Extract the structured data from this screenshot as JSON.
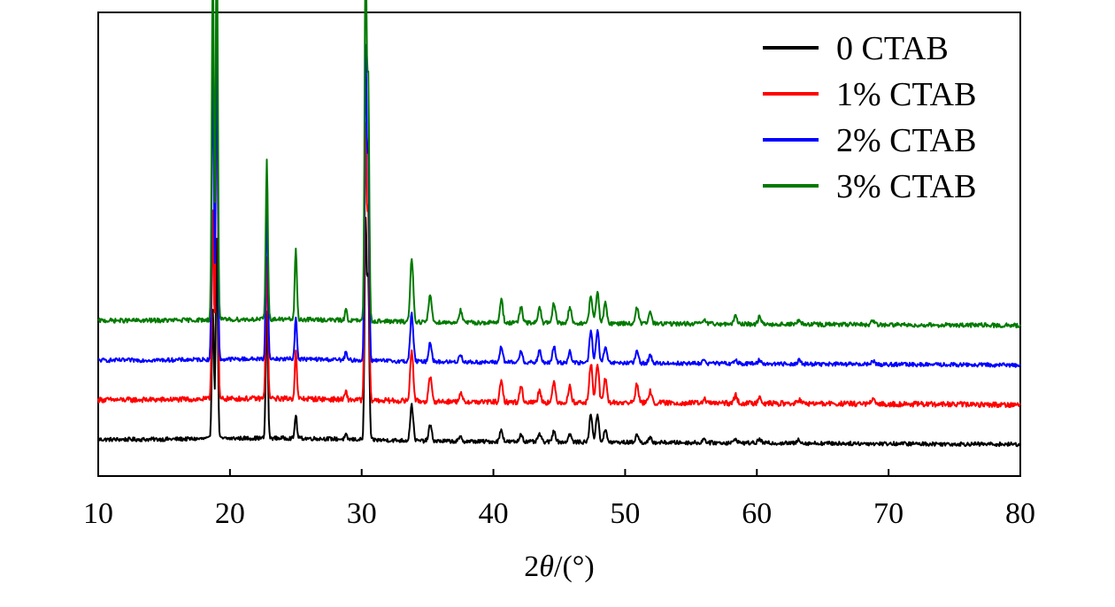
{
  "chart_data": {
    "type": "line",
    "title": "",
    "xlabel": {
      "prefix": "2",
      "symbol": "θ",
      "suffix": "/(°)"
    },
    "ylabel": "",
    "xlim": [
      10,
      80
    ],
    "xticks": [
      10,
      20,
      30,
      40,
      50,
      60,
      70,
      80
    ],
    "xtick_labels": [
      "10",
      "20",
      "30",
      "40",
      "50",
      "60",
      "70",
      "80"
    ],
    "y_ticks_shown": false,
    "grid": false,
    "legend_position": "top-right",
    "units": "arbitrary intensity, stacked traces",
    "peaks": [
      {
        "x": 18.7,
        "h": [
          0.33,
          0.48,
          0.78,
          0.92
        ]
      },
      {
        "x": 19.0,
        "h": [
          0.5,
          0.95,
          0.8,
          1.0
        ]
      },
      {
        "x": 22.8,
        "h": [
          0.32,
          0.36,
          0.4,
          0.4
        ]
      },
      {
        "x": 25.0,
        "h": [
          0.06,
          0.12,
          0.11,
          0.18
        ]
      },
      {
        "x": 28.8,
        "h": [
          0.01,
          0.02,
          0.02,
          0.03
        ]
      },
      {
        "x": 30.3,
        "h": [
          0.55,
          0.68,
          0.78,
          0.92
        ]
      },
      {
        "x": 30.5,
        "h": [
          0.4,
          0.45,
          0.5,
          0.6
        ]
      },
      {
        "x": 33.8,
        "h": [
          0.09,
          0.13,
          0.12,
          0.16
        ]
      },
      {
        "x": 35.2,
        "h": [
          0.04,
          0.06,
          0.05,
          0.07
        ]
      },
      {
        "x": 37.5,
        "h": [
          0.01,
          0.02,
          0.02,
          0.03
        ]
      },
      {
        "x": 40.6,
        "h": [
          0.03,
          0.05,
          0.04,
          0.06
        ]
      },
      {
        "x": 42.1,
        "h": [
          0.02,
          0.04,
          0.03,
          0.04
        ]
      },
      {
        "x": 43.5,
        "h": [
          0.02,
          0.03,
          0.03,
          0.04
        ]
      },
      {
        "x": 44.6,
        "h": [
          0.03,
          0.05,
          0.04,
          0.05
        ]
      },
      {
        "x": 45.8,
        "h": [
          0.02,
          0.04,
          0.03,
          0.04
        ]
      },
      {
        "x": 47.4,
        "h": [
          0.07,
          0.1,
          0.08,
          0.07
        ]
      },
      {
        "x": 47.9,
        "h": [
          0.07,
          0.1,
          0.08,
          0.08
        ]
      },
      {
        "x": 48.5,
        "h": [
          0.03,
          0.06,
          0.04,
          0.05
        ]
      },
      {
        "x": 50.9,
        "h": [
          0.02,
          0.05,
          0.03,
          0.04
        ]
      },
      {
        "x": 51.9,
        "h": [
          0.01,
          0.03,
          0.02,
          0.03
        ]
      },
      {
        "x": 56.0,
        "h": [
          0.01,
          0.01,
          0.01,
          0.01
        ]
      },
      {
        "x": 58.4,
        "h": [
          0.01,
          0.02,
          0.01,
          0.02
        ]
      },
      {
        "x": 60.2,
        "h": [
          0.01,
          0.02,
          0.01,
          0.02
        ]
      },
      {
        "x": 63.2,
        "h": [
          0.01,
          0.01,
          0.01,
          0.01
        ]
      },
      {
        "x": 68.8,
        "h": [
          0.0,
          0.01,
          0.01,
          0.01
        ]
      }
    ],
    "series": [
      {
        "name": "0 CTAB",
        "color": "#000000",
        "baseline": 0.0,
        "noise": 0.01
      },
      {
        "name": "1% CTAB",
        "color": "#ff0000",
        "baseline": 0.1,
        "noise": 0.013
      },
      {
        "name": "2% CTAB",
        "color": "#0000ff",
        "baseline": 0.2,
        "noise": 0.01
      },
      {
        "name": "3% CTAB",
        "color": "#007a00",
        "baseline": 0.3,
        "noise": 0.011
      }
    ],
    "ylim": [
      -0.08,
      1.09
    ]
  }
}
